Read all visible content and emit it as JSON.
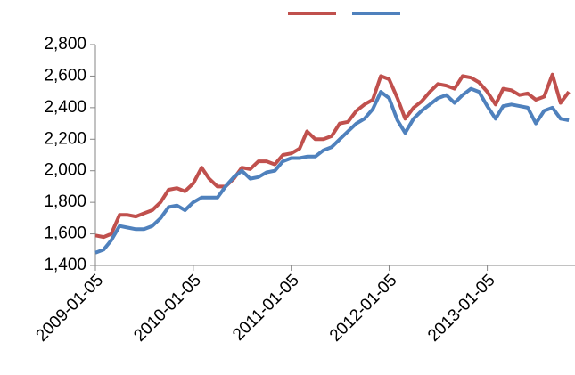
{
  "chart_data": {
    "type": "line",
    "x": [
      "2009-01-05",
      "2009-02-05",
      "2009-03-05",
      "2009-04-05",
      "2009-05-05",
      "2009-06-05",
      "2009-07-05",
      "2009-08-05",
      "2009-09-05",
      "2009-10-05",
      "2009-11-05",
      "2009-12-05",
      "2010-01-05",
      "2010-02-05",
      "2010-03-05",
      "2010-04-05",
      "2010-05-05",
      "2010-06-05",
      "2010-07-05",
      "2010-08-05",
      "2010-09-05",
      "2010-10-05",
      "2010-11-05",
      "2010-12-05",
      "2011-01-05",
      "2011-02-05",
      "2011-03-05",
      "2011-04-05",
      "2011-05-05",
      "2011-06-05",
      "2011-07-05",
      "2011-08-05",
      "2011-09-05",
      "2011-10-05",
      "2011-11-05",
      "2011-12-05",
      "2012-01-05",
      "2012-02-05",
      "2012-03-05",
      "2012-04-05",
      "2012-05-05",
      "2012-06-05",
      "2012-07-05",
      "2012-08-05",
      "2012-09-05",
      "2012-10-05",
      "2012-11-05",
      "2012-12-05",
      "2013-01-05",
      "2013-02-05",
      "2013-03-05",
      "2013-04-05",
      "2013-05-05",
      "2013-06-05",
      "2013-07-05",
      "2013-08-05",
      "2013-09-05",
      "2013-10-05",
      "2013-11-05"
    ],
    "series": [
      {
        "color": "#c0504d",
        "values": [
          1590,
          1580,
          1600,
          1720,
          1720,
          1710,
          1730,
          1750,
          1800,
          1880,
          1890,
          1870,
          1920,
          2020,
          1950,
          1900,
          1900,
          1950,
          2020,
          2010,
          2060,
          2060,
          2040,
          2100,
          2110,
          2140,
          2250,
          2200,
          2200,
          2220,
          2300,
          2310,
          2380,
          2420,
          2450,
          2600,
          2580,
          2460,
          2330,
          2400,
          2440,
          2500,
          2550,
          2540,
          2520,
          2600,
          2590,
          2560,
          2500,
          2420,
          2520,
          2510,
          2480,
          2490,
          2450,
          2470,
          2610,
          2430,
          2500
        ]
      },
      {
        "color": "#4f81bd",
        "values": [
          1480,
          1500,
          1560,
          1650,
          1640,
          1630,
          1630,
          1650,
          1700,
          1770,
          1780,
          1750,
          1800,
          1830,
          1830,
          1830,
          1900,
          1960,
          2000,
          1950,
          1960,
          1990,
          2000,
          2060,
          2080,
          2080,
          2090,
          2090,
          2130,
          2150,
          2200,
          2250,
          2300,
          2330,
          2390,
          2500,
          2460,
          2320,
          2240,
          2330,
          2380,
          2420,
          2460,
          2480,
          2430,
          2480,
          2520,
          2500,
          2410,
          2330,
          2410,
          2420,
          2410,
          2400,
          2300,
          2380,
          2400,
          2330,
          2320
        ]
      }
    ],
    "xlim": [
      "2009-01-05",
      "2013-11-28"
    ],
    "xticks": [
      "2009-01-05",
      "2010-01-05",
      "2011-01-05",
      "2012-01-05",
      "2013-01-05"
    ],
    "ylim": [
      1400,
      2800
    ],
    "yticks": [
      {
        "value": 1400,
        "label": "1,400"
      },
      {
        "value": 1600,
        "label": "1,600"
      },
      {
        "value": 1800,
        "label": "1,800"
      },
      {
        "value": 2000,
        "label": "2,000"
      },
      {
        "value": 2200,
        "label": "2,200"
      },
      {
        "value": 2400,
        "label": "2,400"
      },
      {
        "value": 2600,
        "label": "2,600"
      },
      {
        "value": 2800,
        "label": "2,800"
      }
    ],
    "legend": "top"
  }
}
